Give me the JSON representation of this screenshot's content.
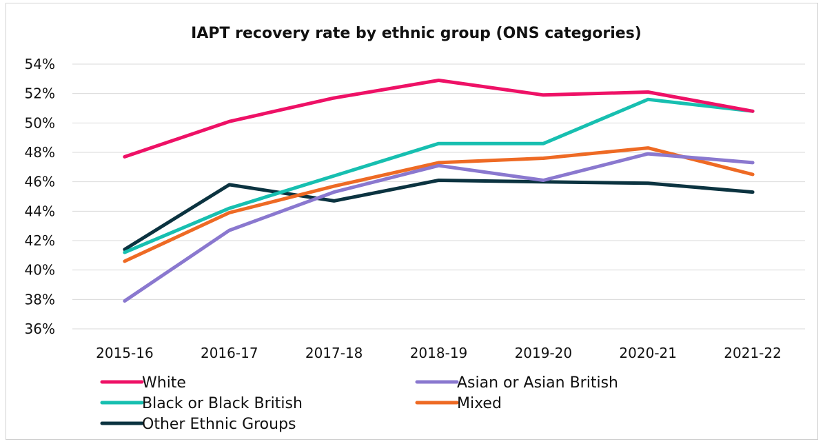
{
  "chart_data": {
    "type": "line",
    "title": "IAPT recovery rate by ethnic group (ONS categories)",
    "xlabel": "",
    "ylabel": "",
    "categories": [
      "2015-16",
      "2016-17",
      "2017-18",
      "2018-19",
      "2019-20",
      "2020-21",
      "2021-22"
    ],
    "ylim": [
      36,
      54
    ],
    "yticks": [
      "36%",
      "38%",
      "40%",
      "42%",
      "44%",
      "46%",
      "48%",
      "50%",
      "52%",
      "54%"
    ],
    "grid": true,
    "legend_position": "bottom",
    "series": [
      {
        "name": "White",
        "color": "#ee1166",
        "values": [
          47.7,
          50.1,
          51.7,
          52.9,
          51.9,
          52.1,
          50.8
        ]
      },
      {
        "name": "Asian or Asian British",
        "color": "#8a78cf",
        "values": [
          37.9,
          42.7,
          45.3,
          47.1,
          46.1,
          47.9,
          47.3
        ]
      },
      {
        "name": "Black or Black British",
        "color": "#17bfb0",
        "values": [
          41.2,
          44.2,
          46.4,
          48.6,
          48.6,
          51.6,
          50.8
        ]
      },
      {
        "name": "Mixed",
        "color": "#ee6a24",
        "values": [
          40.6,
          43.9,
          45.7,
          47.3,
          47.6,
          48.3,
          46.5
        ]
      },
      {
        "name": "Other Ethnic Groups",
        "color": "#0b3340",
        "values": [
          41.4,
          45.8,
          44.7,
          46.1,
          46.0,
          45.9,
          45.3
        ]
      }
    ]
  }
}
